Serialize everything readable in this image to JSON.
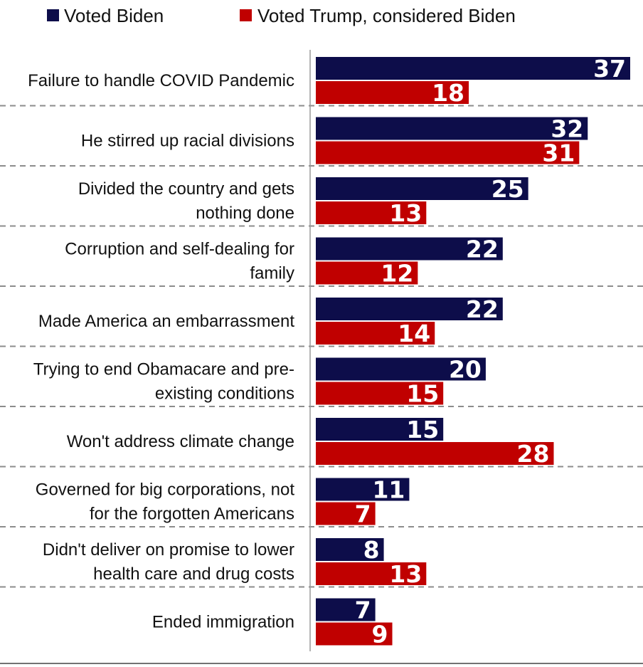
{
  "chart_data": {
    "type": "bar",
    "orientation": "horizontal",
    "categories": [
      "Failure to handle COVID Pandemic",
      "He stirred up racial divisions",
      "Divided the country and gets nothing done",
      "Corruption and self-dealing for family",
      "Made America an embarrassment",
      "Trying to end Obamacare and pre-existing conditions",
      "Won't address climate change",
      "Governed for big corporations, not for the forgotten Americans",
      "Didn't deliver on promise to lower health care and drug costs",
      "Ended immigration"
    ],
    "category_label_lines": [
      [
        "Failure to handle COVID Pandemic"
      ],
      [
        "He stirred up racial divisions"
      ],
      [
        "Divided the country and gets",
        "nothing done"
      ],
      [
        "Corruption and self-dealing for",
        "family"
      ],
      [
        "Made America an embarrassment"
      ],
      [
        "Trying to end Obamacare and pre-",
        "existing conditions"
      ],
      [
        "Won't address climate change"
      ],
      [
        "Governed for big corporations, not",
        "for the forgotten Americans"
      ],
      [
        "Didn't deliver on promise to lower",
        "health care and drug costs"
      ],
      [
        "Ended immigration"
      ]
    ],
    "series": [
      {
        "name": "Voted Biden",
        "color": "#0d0d4a",
        "values": [
          37,
          32,
          25,
          22,
          22,
          20,
          15,
          11,
          8,
          7
        ]
      },
      {
        "name": "Voted Trump, considered Biden",
        "color": "#c00000",
        "values": [
          18,
          31,
          13,
          12,
          14,
          15,
          28,
          7,
          13,
          9
        ]
      }
    ],
    "xlim": [
      0,
      37
    ],
    "grid": false,
    "legend": "top",
    "data_labels": true
  }
}
